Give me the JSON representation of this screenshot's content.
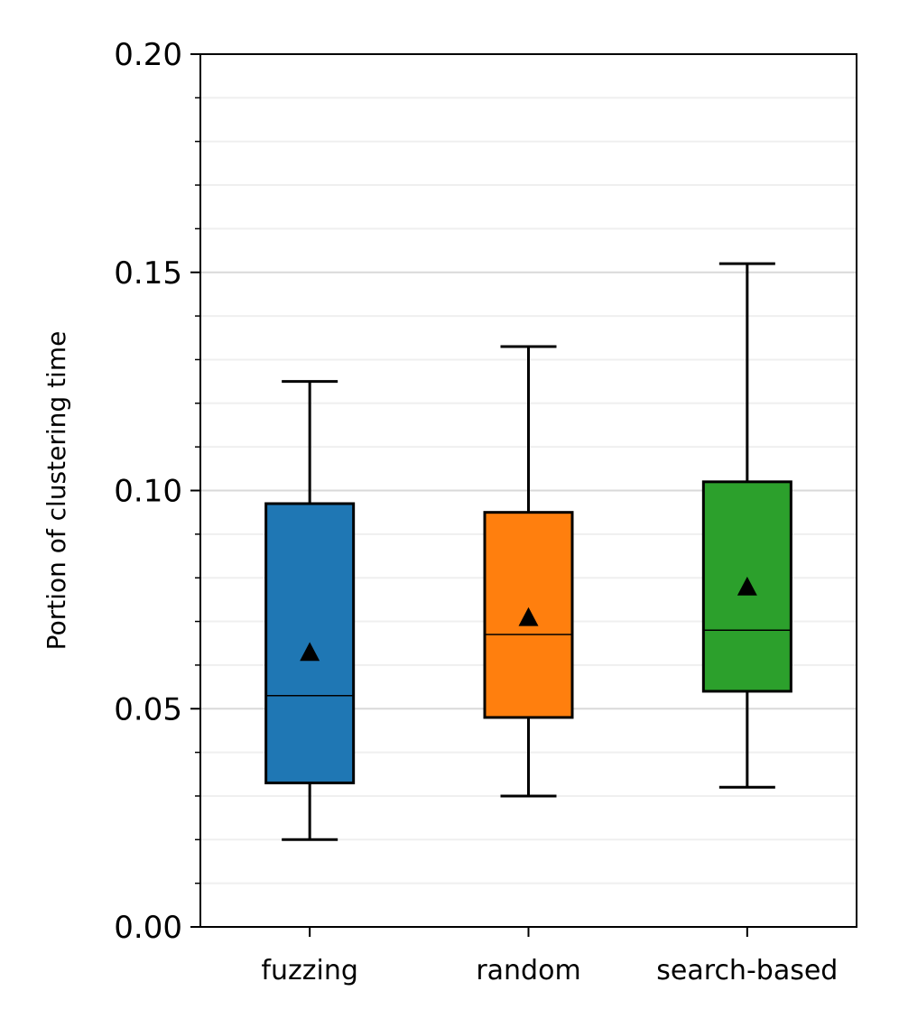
{
  "chart_data": {
    "type": "box",
    "title": "",
    "xlabel": "",
    "ylabel": "Portion of clustering time",
    "ylim": [
      0,
      0.2
    ],
    "y_major_ticks": [
      0,
      0.05,
      0.1,
      0.15,
      0.2
    ],
    "y_tick_labels": [
      "0.00",
      "0.05",
      "0.10",
      "0.15",
      "0.20"
    ],
    "y_minor_step": 0.01,
    "grid": true,
    "categories": [
      "fuzzing",
      "random",
      "search-based"
    ],
    "boxes": [
      {
        "category": "fuzzing",
        "color": "#1f77b4",
        "whisker_low": 0.02,
        "q1": 0.033,
        "median": 0.053,
        "q3": 0.097,
        "whisker_high": 0.125,
        "mean": 0.063
      },
      {
        "category": "random",
        "color": "#ff7f0e",
        "whisker_low": 0.03,
        "q1": 0.048,
        "median": 0.067,
        "q3": 0.095,
        "whisker_high": 0.133,
        "mean": 0.071
      },
      {
        "category": "search-based",
        "color": "#2ca02c",
        "whisker_low": 0.032,
        "q1": 0.054,
        "median": 0.068,
        "q3": 0.102,
        "whisker_high": 0.152,
        "mean": 0.078
      }
    ]
  }
}
